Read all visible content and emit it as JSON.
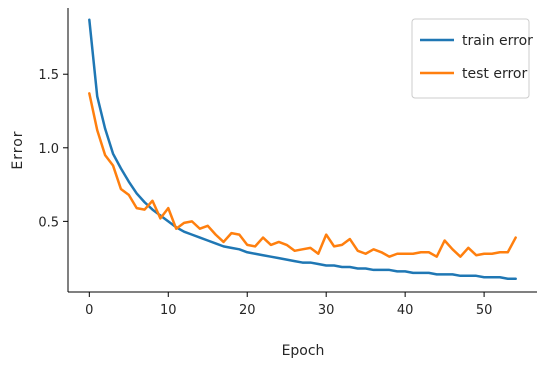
{
  "chart_data": {
    "type": "line",
    "title": "",
    "xlabel": "Epoch",
    "ylabel": "Error",
    "xlim": [
      -2.7,
      56.7
    ],
    "ylim": [
      0.02,
      1.95
    ],
    "xticks": [
      0,
      10,
      20,
      30,
      40,
      50
    ],
    "xtick_labels": [
      "0",
      "10",
      "20",
      "30",
      "40",
      "50"
    ],
    "yticks": [
      0.5,
      1.0,
      1.5
    ],
    "ytick_labels": [
      "0.5",
      "1.0",
      "1.5"
    ],
    "grid": false,
    "legend_position": "top-right",
    "series": [
      {
        "name": "train error",
        "color": "#1f77b4",
        "x": [
          0,
          1,
          2,
          3,
          4,
          5,
          6,
          7,
          8,
          9,
          10,
          11,
          12,
          13,
          14,
          15,
          16,
          17,
          18,
          19,
          20,
          21,
          22,
          23,
          24,
          25,
          26,
          27,
          28,
          29,
          30,
          31,
          32,
          33,
          34,
          35,
          36,
          37,
          38,
          39,
          40,
          41,
          42,
          43,
          44,
          45,
          46,
          47,
          48,
          49,
          50,
          51,
          52,
          53,
          54
        ],
        "values": [
          1.87,
          1.35,
          1.13,
          0.96,
          0.86,
          0.77,
          0.69,
          0.63,
          0.58,
          0.54,
          0.5,
          0.46,
          0.43,
          0.41,
          0.39,
          0.37,
          0.35,
          0.33,
          0.32,
          0.31,
          0.29,
          0.28,
          0.27,
          0.26,
          0.25,
          0.24,
          0.23,
          0.22,
          0.22,
          0.21,
          0.2,
          0.2,
          0.19,
          0.19,
          0.18,
          0.18,
          0.17,
          0.17,
          0.17,
          0.16,
          0.16,
          0.15,
          0.15,
          0.15,
          0.14,
          0.14,
          0.14,
          0.13,
          0.13,
          0.13,
          0.12,
          0.12,
          0.12,
          0.11,
          0.11
        ]
      },
      {
        "name": "test error",
        "color": "#ff7f0e",
        "x": [
          0,
          1,
          2,
          3,
          4,
          5,
          6,
          7,
          8,
          9,
          10,
          11,
          12,
          13,
          14,
          15,
          16,
          17,
          18,
          19,
          20,
          21,
          22,
          23,
          24,
          25,
          26,
          27,
          28,
          29,
          30,
          31,
          32,
          33,
          34,
          35,
          36,
          37,
          38,
          39,
          40,
          41,
          42,
          43,
          44,
          45,
          46,
          47,
          48,
          49,
          50,
          51,
          52,
          53,
          54
        ],
        "values": [
          1.37,
          1.12,
          0.95,
          0.88,
          0.72,
          0.68,
          0.59,
          0.58,
          0.64,
          0.52,
          0.59,
          0.45,
          0.49,
          0.5,
          0.45,
          0.47,
          0.41,
          0.36,
          0.42,
          0.41,
          0.34,
          0.33,
          0.39,
          0.34,
          0.36,
          0.34,
          0.3,
          0.31,
          0.32,
          0.28,
          0.41,
          0.33,
          0.34,
          0.38,
          0.3,
          0.28,
          0.31,
          0.29,
          0.26,
          0.28,
          0.28,
          0.28,
          0.29,
          0.29,
          0.26,
          0.37,
          0.31,
          0.26,
          0.32,
          0.27,
          0.28,
          0.28,
          0.29,
          0.29,
          0.39
        ]
      }
    ]
  }
}
